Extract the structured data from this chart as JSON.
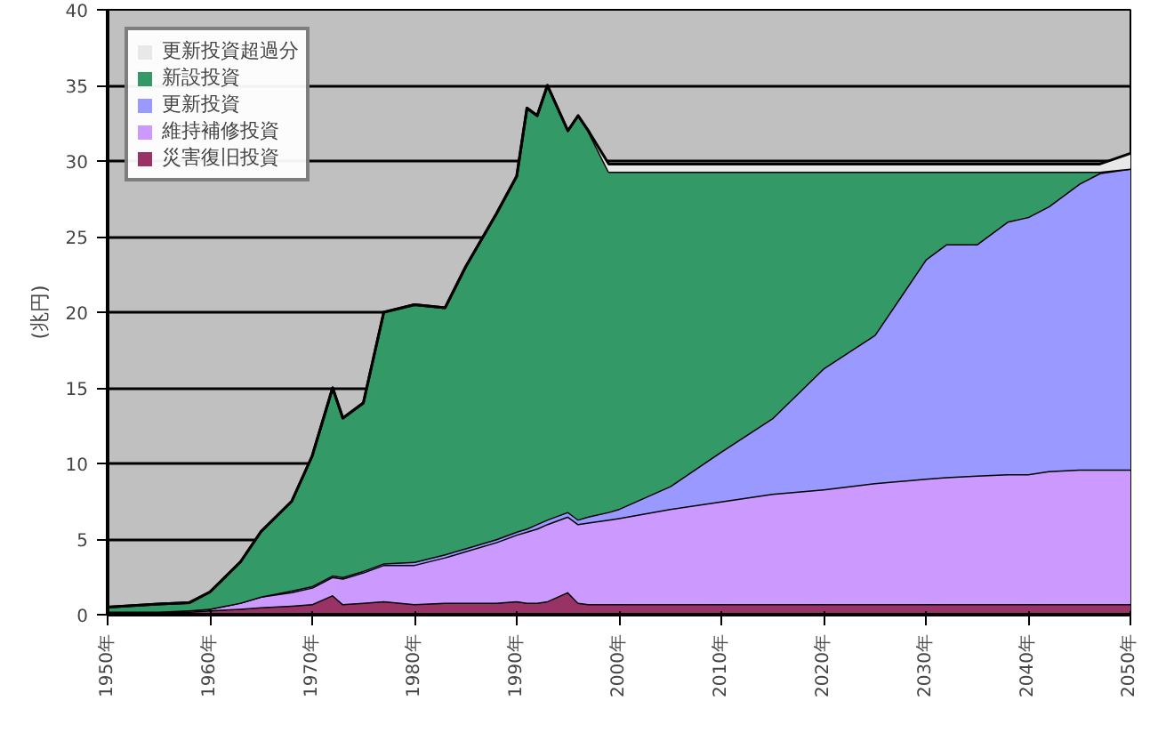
{
  "chart_data": {
    "type": "area",
    "stacked": true,
    "ylabel": "(兆円)",
    "x": [
      1950,
      1955,
      1958,
      1960,
      1963,
      1965,
      1968,
      1970,
      1972,
      1973,
      1975,
      1977,
      1980,
      1983,
      1985,
      1988,
      1990,
      1991,
      1992,
      1993,
      1995,
      1996,
      1997,
      1999,
      2000,
      2005,
      2010,
      2015,
      2020,
      2025,
      2030,
      2032,
      2035,
      2038,
      2040,
      2042,
      2045,
      2047,
      2050
    ],
    "series": [
      {
        "name": "災害復旧投資",
        "color": "#993366",
        "values": [
          0.2,
          0.2,
          0.2,
          0.3,
          0.4,
          0.5,
          0.6,
          0.7,
          1.3,
          0.7,
          0.8,
          0.9,
          0.7,
          0.8,
          0.8,
          0.8,
          0.9,
          0.8,
          0.8,
          0.9,
          1.5,
          0.8,
          0.7,
          0.7,
          0.7,
          0.7,
          0.7,
          0.7,
          0.7,
          0.7,
          0.7,
          0.7,
          0.7,
          0.7,
          0.7,
          0.7,
          0.7,
          0.7,
          0.7
        ]
      },
      {
        "name": "維持補修投資",
        "color": "#cc99ff",
        "values": [
          0.0,
          0.0,
          0.1,
          0.1,
          0.4,
          0.7,
          0.9,
          1.1,
          1.2,
          1.7,
          2.0,
          2.4,
          2.6,
          3.0,
          3.4,
          4.0,
          4.4,
          4.7,
          4.9,
          5.1,
          5.0,
          5.2,
          5.4,
          5.6,
          5.7,
          6.3,
          6.8,
          7.3,
          7.6,
          8.0,
          8.3,
          8.4,
          8.5,
          8.6,
          8.6,
          8.8,
          8.9,
          8.9,
          8.9
        ]
      },
      {
        "name": "更新投資",
        "color": "#9999ff",
        "values": [
          0,
          0,
          0,
          0,
          0,
          0,
          0.1,
          0.1,
          0.1,
          0.1,
          0.1,
          0.1,
          0.2,
          0.2,
          0.2,
          0.2,
          0.2,
          0.2,
          0.3,
          0.3,
          0.3,
          0.3,
          0.4,
          0.5,
          0.6,
          1.5,
          3.3,
          5.0,
          8.0,
          9.8,
          14.5,
          15.4,
          15.3,
          16.7,
          17.0,
          17.5,
          18.9,
          19.6,
          19.9
        ]
      },
      {
        "name": "新設投資",
        "color": "#339966",
        "values": [
          0.3,
          0.5,
          0.5,
          1.1,
          2.7,
          4.3,
          5.9,
          8.6,
          12.4,
          10.5,
          11.1,
          16.6,
          17.0,
          16.3,
          18.6,
          21.5,
          23.5,
          27.8,
          27.0,
          28.7,
          25.2,
          26.7,
          25.5,
          22.5,
          22.3,
          20.8,
          18.5,
          16.3,
          13.0,
          10.8,
          5.8,
          4.8,
          4.8,
          3.3,
          3.0,
          2.3,
          0.8,
          0.1,
          0
        ]
      },
      {
        "name": "更新投資超過分",
        "color": "#e8e8e8",
        "values": [
          0,
          0,
          0,
          0,
          0,
          0,
          0,
          0,
          0,
          0,
          0,
          0,
          0,
          0,
          0,
          0,
          0,
          0,
          0,
          0,
          0,
          0,
          0,
          0.5,
          0.5,
          0.5,
          0.5,
          0.5,
          0.5,
          0.5,
          0.5,
          0.5,
          0.5,
          0.5,
          0.5,
          0.5,
          0.5,
          0.5,
          1.0
        ]
      }
    ],
    "xlim": [
      1950,
      2050
    ],
    "ylim": [
      0,
      40
    ],
    "yticks": [
      0,
      5,
      10,
      15,
      20,
      25,
      30,
      35,
      40
    ],
    "xticks": [
      {
        "value": 1950,
        "label": "1950年"
      },
      {
        "value": 1960,
        "label": "1960年"
      },
      {
        "value": 1970,
        "label": "1970年"
      },
      {
        "value": 1980,
        "label": "1980年"
      },
      {
        "value": 1990,
        "label": "1990年"
      },
      {
        "value": 2000,
        "label": "2000年"
      },
      {
        "value": 2010,
        "label": "2010年"
      },
      {
        "value": 2020,
        "label": "2020年"
      },
      {
        "value": 2030,
        "label": "2030年"
      },
      {
        "value": 2040,
        "label": "2040年"
      },
      {
        "value": 2050,
        "label": "2050年"
      }
    ],
    "grid": "y",
    "legend": "top left"
  }
}
